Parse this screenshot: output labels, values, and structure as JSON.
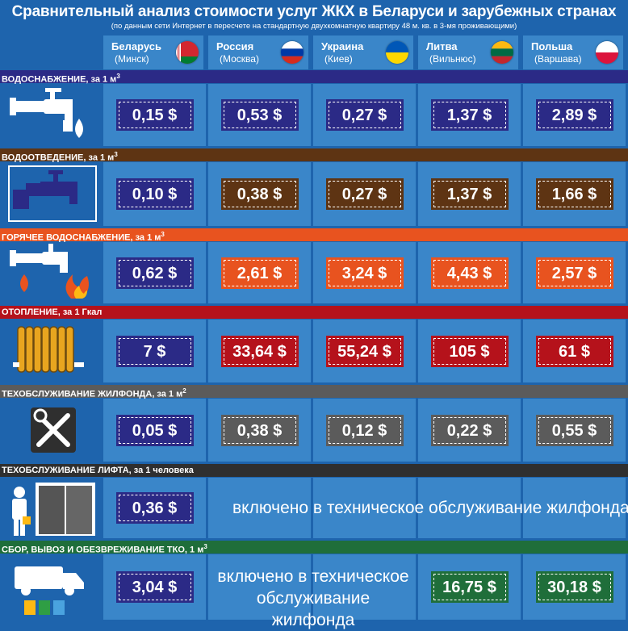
{
  "header": {
    "title": "Сравнительный анализ стоимости услуг ЖКХ в Беларуси и зарубежных странах",
    "subtitle": "(по данным сети Интернет в пересчете на стандартную двухкомнатную квартиру 48 м. кв. в 3-мя проживающими)"
  },
  "countries": [
    {
      "name": "Беларусь",
      "city": "(Минск)"
    },
    {
      "name": "Россия",
      "city": "(Москва)"
    },
    {
      "name": "Украина",
      "city": "(Киев)"
    },
    {
      "name": "Литва",
      "city": "(Вильнюс)"
    },
    {
      "name": "Польша",
      "city": "(Варшава)"
    }
  ],
  "sections": [
    {
      "label": "ВОДОСНАБЖЕНИЕ, за 1 м",
      "sup": "3",
      "color": "#2b2a86",
      "values": [
        "0,15 $",
        "0,53 $",
        "0,27 $",
        "1,37 $",
        "2,89 $"
      ]
    },
    {
      "label": "ВОДООТВЕДЕНИЕ, за 1 м",
      "sup": "3",
      "color": "#5e3413",
      "values": [
        "0,10 $",
        "0,38 $",
        "0,27 $",
        "1,37 $",
        "1,66 $"
      ]
    },
    {
      "label": "ГОРЯЧЕЕ ВОДОСНАБЖЕНИЕ, за 1 м",
      "sup": "3",
      "color": "#e8531f",
      "values": [
        "0,62 $",
        "2,61 $",
        "3,24 $",
        "4,43 $",
        "2,57 $"
      ]
    },
    {
      "label": "ОТОПЛЕНИЕ, за 1 Гкал",
      "sup": "",
      "color": "#b5121b",
      "values": [
        "7 $",
        "33,64 $",
        "55,24 $",
        "105 $",
        "61 $"
      ]
    },
    {
      "label": "ТЕХОБСЛУЖИВАНИЕ ЖИЛФОНДА, за 1 м",
      "sup": "2",
      "color": "#5b5b5b",
      "values": [
        "0,05 $",
        "0,38 $",
        "0,12 $",
        "0,22 $",
        "0,55 $"
      ]
    },
    {
      "label": "ТЕХОБСЛУЖИВАНИЕ ЛИФТА, за 1 человека",
      "sup": "",
      "color": "#2f2f2f",
      "values": [
        "0,36 $"
      ],
      "note": "включено в техническое обслуживание жилфонда"
    },
    {
      "label": "СБОР, ВЫВОЗ И ОБЕЗВРЕЖИВАНИЕ ТКО, 1 м",
      "sup": "3",
      "color": "#1f6e3a",
      "values": [
        "3,04 $",
        "16,75 $",
        "30,18 $"
      ],
      "note": "включено в техническое обслуживание жилфонда"
    }
  ],
  "colors": {
    "belarus_box": "#2b2a86",
    "background": "#1e64ad",
    "column": "#3a86c9"
  }
}
